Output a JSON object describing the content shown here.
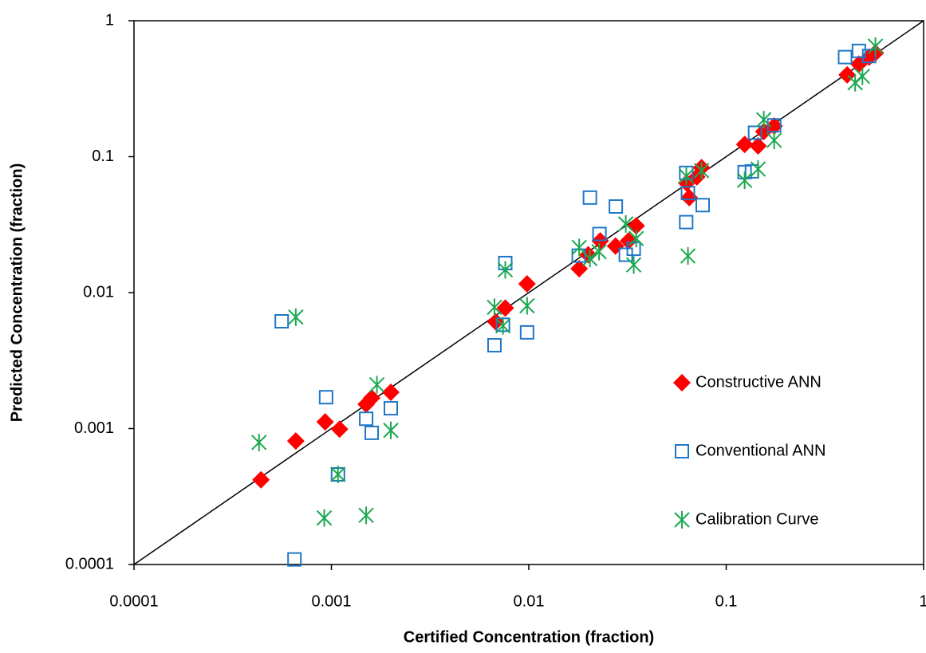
{
  "chart_data": {
    "type": "scatter",
    "x_label": "Certified Concentration (fraction)",
    "y_label": "Predicted Concentration (fraction)",
    "xscale": "log",
    "yscale": "log",
    "xlim": [
      0.0001,
      1
    ],
    "ylim": [
      0.0001,
      1
    ],
    "xticks": [
      0.0001,
      0.001,
      0.01,
      0.1,
      1
    ],
    "yticks": [
      0.0001,
      0.001,
      0.01,
      0.1,
      1
    ],
    "identity_line": true,
    "legend": "right",
    "series": [
      {
        "name": "Constructive ANN",
        "color": "#ff0000",
        "marker": "diamond",
        "x": [
          0.00044,
          0.00066,
          0.00093,
          0.0011,
          0.0015,
          0.0016,
          0.002,
          0.0068,
          0.0076,
          0.0098,
          0.018,
          0.02,
          0.023,
          0.0275,
          0.032,
          0.035,
          0.063,
          0.065,
          0.071,
          0.075,
          0.124,
          0.145,
          0.155,
          0.175,
          0.41,
          0.47,
          0.53,
          0.57
        ],
        "values": [
          0.00042,
          0.00081,
          0.00112,
          0.00099,
          0.00151,
          0.00168,
          0.00185,
          0.0061,
          0.0077,
          0.0116,
          0.015,
          0.019,
          0.024,
          0.022,
          0.024,
          0.031,
          0.064,
          0.05,
          0.071,
          0.083,
          0.123,
          0.12,
          0.153,
          0.168,
          0.4,
          0.48,
          0.54,
          0.58
        ]
      },
      {
        "name": "Conventional ANN",
        "color": "#1f77c8",
        "marker": "square",
        "x": [
          0.00056,
          0.00094,
          0.0015,
          0.0016,
          0.002,
          0.00108,
          0.00065,
          0.0067,
          0.0076,
          0.0074,
          0.0098,
          0.0204,
          0.0228,
          0.0179,
          0.0276,
          0.031,
          0.034,
          0.0627,
          0.0627,
          0.076,
          0.064,
          0.124,
          0.135,
          0.14,
          0.175,
          0.4,
          0.47,
          0.53
        ],
        "values": [
          0.00615,
          0.0017,
          0.00118,
          0.00093,
          0.00141,
          0.00046,
          0.000109,
          0.0041,
          0.0165,
          0.0058,
          0.0051,
          0.05,
          0.027,
          0.0187,
          0.043,
          0.019,
          0.021,
          0.033,
          0.076,
          0.044,
          0.054,
          0.077,
          0.078,
          0.15,
          0.17,
          0.54,
          0.6,
          0.55
        ]
      },
      {
        "name": "Calibration Curve",
        "color": "#1aa850",
        "marker": "asterisk",
        "x": [
          0.00066,
          0.00043,
          0.00092,
          0.00108,
          0.0015,
          0.0017,
          0.002,
          0.0067,
          0.0074,
          0.0076,
          0.0098,
          0.018,
          0.0204,
          0.0227,
          0.031,
          0.034,
          0.035,
          0.064,
          0.0628,
          0.075,
          0.124,
          0.145,
          0.155,
          0.175,
          0.45,
          0.49,
          0.57
        ],
        "values": [
          0.0066,
          0.00079,
          0.00022,
          0.00046,
          0.00023,
          0.0021,
          0.00097,
          0.0078,
          0.0057,
          0.0147,
          0.008,
          0.0215,
          0.0178,
          0.02,
          0.032,
          0.016,
          0.025,
          0.0186,
          0.072,
          0.079,
          0.067,
          0.081,
          0.187,
          0.132,
          0.35,
          0.39,
          0.65
        ]
      }
    ]
  }
}
